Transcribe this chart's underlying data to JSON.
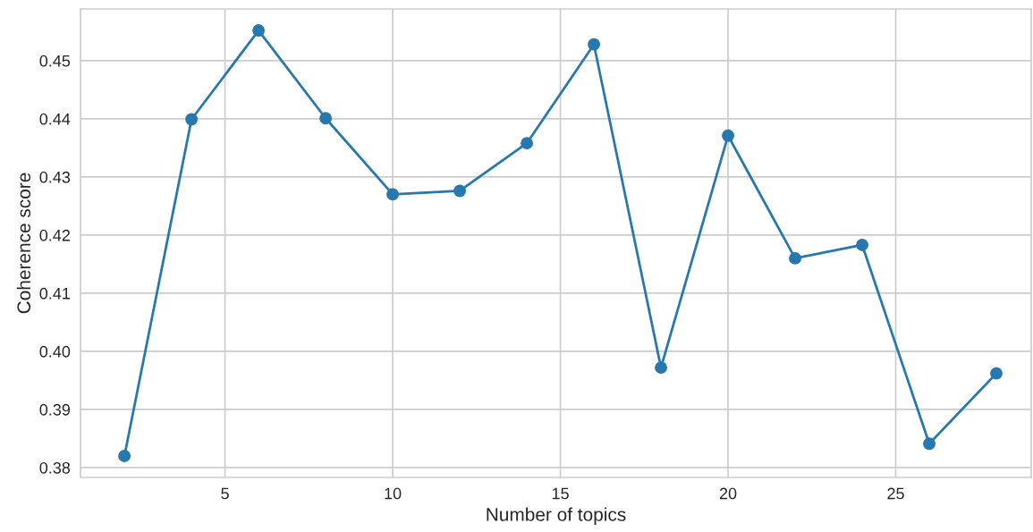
{
  "chart_data": {
    "type": "line",
    "xlabel": "Number of topics",
    "ylabel": "Coherence score",
    "x": [
      2,
      4,
      6,
      8,
      10,
      12,
      14,
      16,
      18,
      20,
      22,
      24,
      26,
      28
    ],
    "series": [
      {
        "color": "#2878b0",
        "values": [
          0.382,
          0.4399,
          0.4552,
          0.4401,
          0.427,
          0.4276,
          0.4358,
          0.4528,
          0.3972,
          0.4371,
          0.416,
          0.4183,
          0.3841,
          0.3962
        ]
      }
    ],
    "xlim": [
      0.69,
      29.04
    ],
    "ylim": [
      0.3783,
      0.4589
    ],
    "xticks": [
      5,
      10,
      15,
      20,
      25
    ],
    "yticks": [
      0.38,
      0.39,
      {
        "value": 0.4,
        "label": "0.40"
      },
      0.41,
      0.42,
      0.43,
      0.44,
      0.45
    ],
    "grid": true,
    "marker": "circle",
    "line_style": "solid"
  }
}
